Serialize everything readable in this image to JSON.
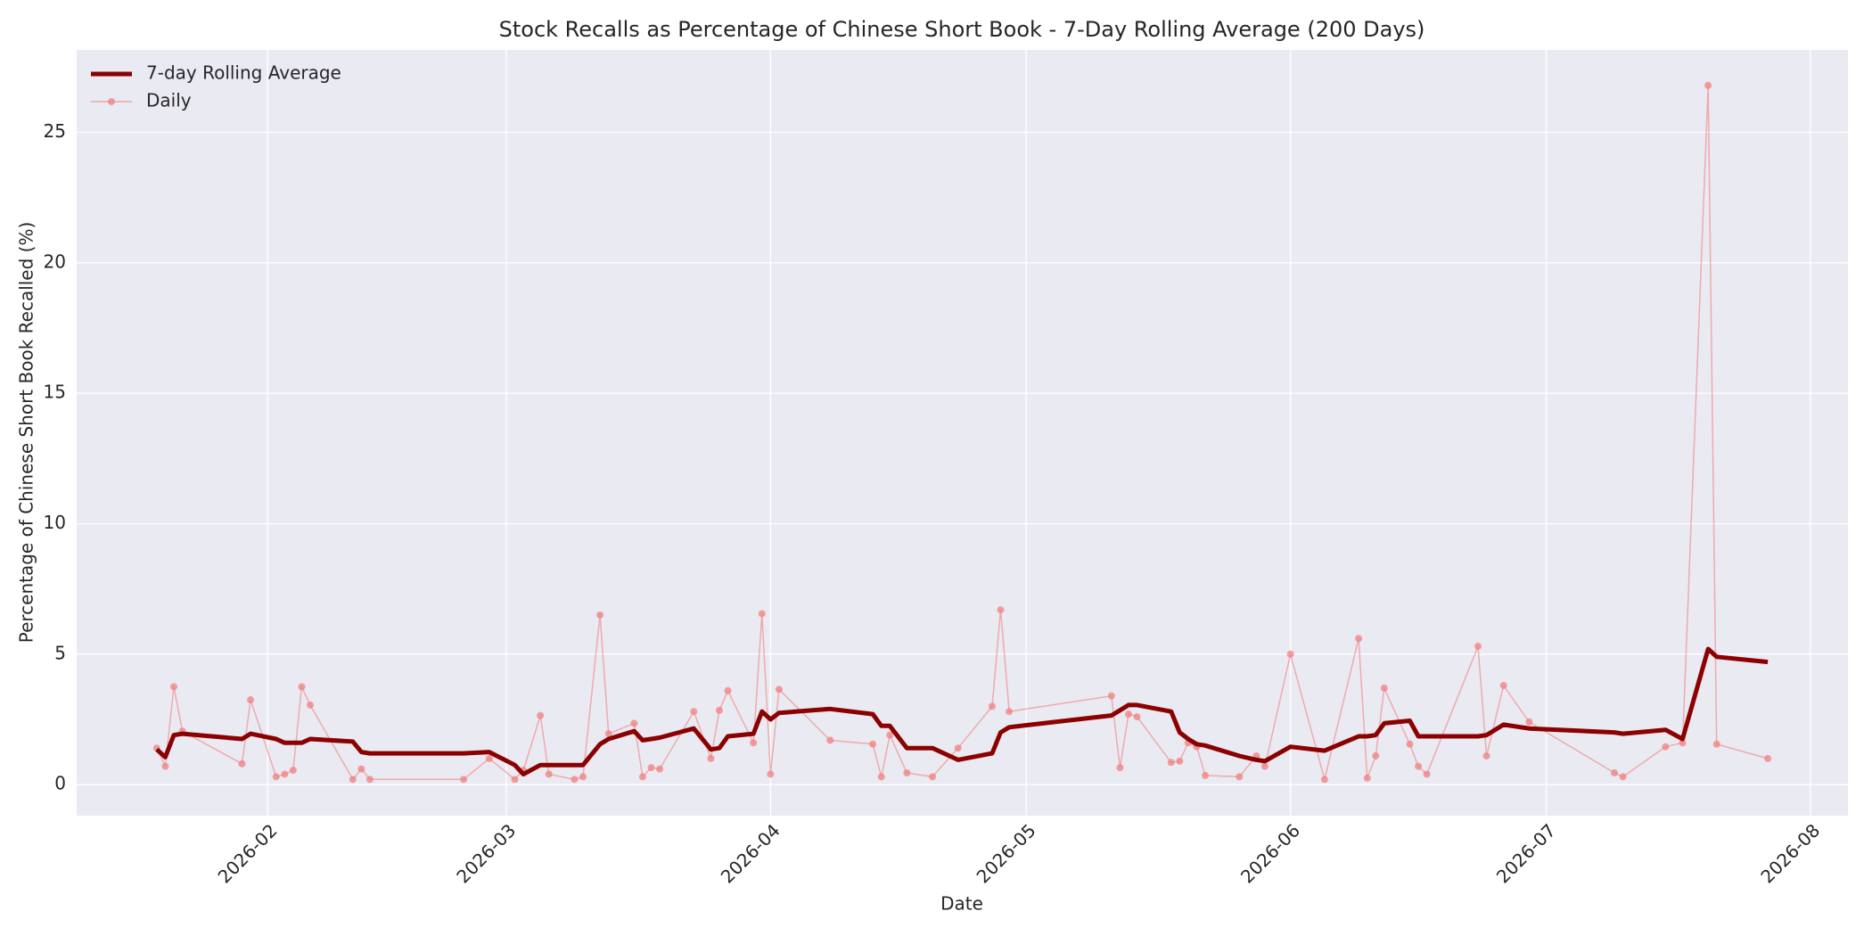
{
  "chart_data": {
    "type": "line",
    "title": "Stock Recalls as Percentage of Chinese Short Book - 7-Day Rolling Average (200 Days)",
    "x_label": "Date",
    "y_label": "Percentage of Chinese Short Book Recalled (%)",
    "x": [
      18,
      19,
      20,
      21,
      28,
      29,
      32,
      33,
      34,
      35,
      36,
      41,
      42,
      43,
      54,
      57,
      60,
      61,
      63,
      64,
      67,
      68,
      70,
      71,
      74,
      75,
      76,
      77,
      81,
      83,
      84,
      85,
      88,
      89,
      90,
      91,
      97,
      102,
      103,
      104,
      106,
      109,
      112,
      116,
      117,
      118,
      130,
      131,
      132,
      133,
      137,
      138,
      139,
      140,
      141,
      145,
      147,
      148,
      151,
      155,
      159,
      160,
      161,
      162,
      165,
      166,
      167,
      173,
      174,
      176,
      179,
      189,
      190,
      195,
      197,
      200,
      201,
      207
    ],
    "series": [
      {
        "name": "7-day Rolling Average",
        "color": "#8b0000",
        "width": 5,
        "markers": false,
        "values": [
          1.35,
          1.05,
          1.9,
          1.95,
          1.75,
          1.95,
          1.75,
          1.6,
          1.6,
          1.6,
          1.75,
          1.65,
          1.25,
          1.2,
          1.2,
          1.25,
          0.75,
          0.4,
          0.75,
          0.75,
          0.75,
          0.75,
          1.55,
          1.75,
          2.05,
          1.7,
          1.75,
          1.8,
          2.15,
          1.35,
          1.4,
          1.85,
          1.95,
          2.8,
          2.5,
          2.75,
          2.9,
          2.7,
          2.25,
          2.25,
          1.4,
          1.4,
          0.95,
          1.2,
          2.0,
          2.2,
          2.65,
          2.85,
          3.05,
          3.05,
          2.8,
          2.0,
          1.75,
          1.55,
          1.5,
          1.1,
          0.95,
          0.9,
          1.45,
          1.3,
          1.85,
          1.85,
          1.9,
          2.35,
          2.45,
          1.85,
          1.85,
          1.85,
          1.9,
          2.3,
          2.15,
          2.0,
          1.95,
          2.1,
          1.75,
          5.2,
          4.9,
          4.7
        ]
      },
      {
        "name": "Daily",
        "color": "#f08080",
        "width": 1.5,
        "markers": true,
        "values": [
          1.4,
          0.7,
          3.75,
          2.05,
          0.8,
          3.25,
          0.3,
          0.4,
          0.55,
          3.75,
          3.05,
          0.2,
          0.6,
          0.2,
          0.2,
          1.0,
          0.2,
          0.55,
          2.65,
          0.4,
          0.2,
          0.3,
          6.5,
          1.95,
          2.35,
          0.3,
          0.65,
          0.6,
          2.8,
          1.0,
          2.85,
          3.6,
          1.6,
          6.55,
          0.4,
          3.65,
          1.7,
          1.55,
          0.3,
          1.9,
          0.45,
          0.3,
          1.4,
          3.0,
          6.7,
          2.8,
          3.4,
          0.65,
          2.7,
          2.6,
          0.85,
          0.9,
          1.6,
          1.45,
          0.35,
          0.3,
          1.1,
          0.7,
          5.0,
          0.2,
          5.6,
          0.25,
          1.1,
          3.7,
          1.55,
          0.7,
          0.4,
          5.3,
          1.1,
          3.8,
          2.4,
          0.45,
          0.3,
          1.45,
          1.6,
          26.8,
          1.55,
          1.0
        ]
      }
    ],
    "xlim": [
      8.6,
      216.4
    ],
    "xticks": [
      {
        "value": 31,
        "label": "2026-02"
      },
      {
        "value": 59,
        "label": "2026-03"
      },
      {
        "value": 90,
        "label": "2026-04"
      },
      {
        "value": 120,
        "label": "2026-05"
      },
      {
        "value": 151,
        "label": "2026-06"
      },
      {
        "value": 181,
        "label": "2026-07"
      },
      {
        "value": 212,
        "label": "2026-08"
      }
    ],
    "ylim": [
      -1.19,
      28.16
    ],
    "yticks": [
      0,
      5,
      10,
      15,
      20,
      25
    ],
    "grid": true,
    "legend": "upper-left"
  }
}
